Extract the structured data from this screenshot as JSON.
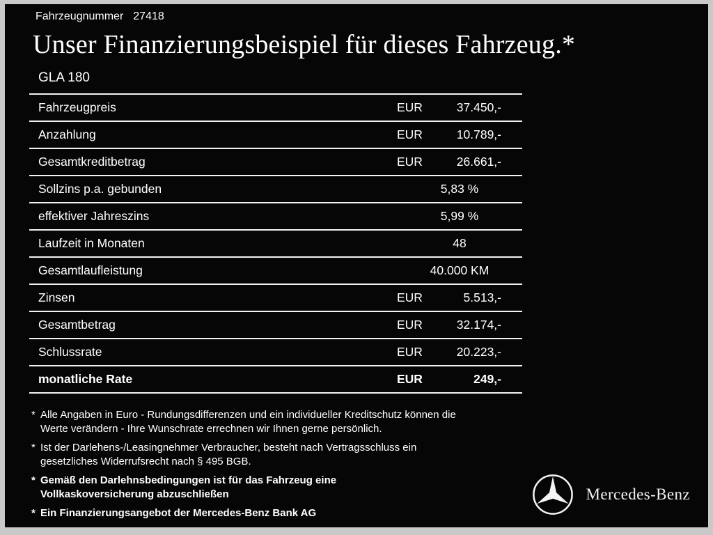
{
  "header": {
    "vehicle_number_label": "Fahrzeugnummer",
    "vehicle_number": "27418",
    "title": "Unser Finanzierungsbeispiel für dieses Fahrzeug.*",
    "model": "GLA 180"
  },
  "finance_table": {
    "rows": [
      {
        "label": "Fahrzeugpreis",
        "currency": "EUR",
        "value": "37.450,-",
        "align": "right",
        "emphasis": false
      },
      {
        "label": "Anzahlung",
        "currency": "EUR",
        "value": "10.789,-",
        "align": "right",
        "emphasis": false
      },
      {
        "label": "Gesamtkreditbetrag",
        "currency": "EUR",
        "value": "26.661,-",
        "align": "right",
        "emphasis": false
      },
      {
        "label": "Sollzins p.a. gebunden",
        "currency": "",
        "value": "5,83 %",
        "align": "center",
        "emphasis": false
      },
      {
        "label": "effektiver Jahreszins",
        "currency": "",
        "value": "5,99 %",
        "align": "center",
        "emphasis": false
      },
      {
        "label": "Laufzeit in Monaten",
        "currency": "",
        "value": "48",
        "align": "center",
        "emphasis": false
      },
      {
        "label": "Gesamtlaufleistung",
        "currency": "",
        "value": "40.000 KM",
        "align": "center",
        "emphasis": false
      },
      {
        "label": "Zinsen",
        "currency": "EUR",
        "value": "5.513,-",
        "align": "right",
        "emphasis": false
      },
      {
        "label": "Gesamtbetrag",
        "currency": "EUR",
        "value": "32.174,-",
        "align": "right",
        "emphasis": false
      },
      {
        "label": "Schlussrate",
        "currency": "EUR",
        "value": "20.223,-",
        "align": "right",
        "emphasis": false
      },
      {
        "label": "monatliche Rate",
        "currency": "EUR",
        "value": "249,-",
        "align": "right",
        "emphasis": true
      }
    ]
  },
  "footnotes": [
    {
      "marker": "*",
      "bold": false,
      "text": "Alle Angaben in Euro - Rundungsdifferenzen und ein individueller Kreditschutz können die\nWerte verändern - Ihre Wunschrate errechnen wir Ihnen gerne persönlich."
    },
    {
      "marker": "*",
      "bold": false,
      "text": "Ist der Darlehens-/Leasingnehmer Verbraucher, besteht nach Vertragsschluss ein\ngesetzliches Widerrufsrecht nach § 495 BGB."
    },
    {
      "marker": "*",
      "bold": true,
      "text": "Gemäß den Darlehnsbedingungen ist für das Fahrzeug eine\nVollkaskoversicherung abzuschließen"
    },
    {
      "marker": "*",
      "bold": true,
      "text": "Ein Finanzierungsangebot der Mercedes-Benz Bank AG"
    }
  ],
  "brand": {
    "logo_icon": "mercedes-star",
    "name": "Mercedes-Benz"
  },
  "colors": {
    "page_background": "#060606",
    "frame": "#c9c9c9",
    "text": "#ffffff",
    "rule": "#f2f2f2"
  }
}
